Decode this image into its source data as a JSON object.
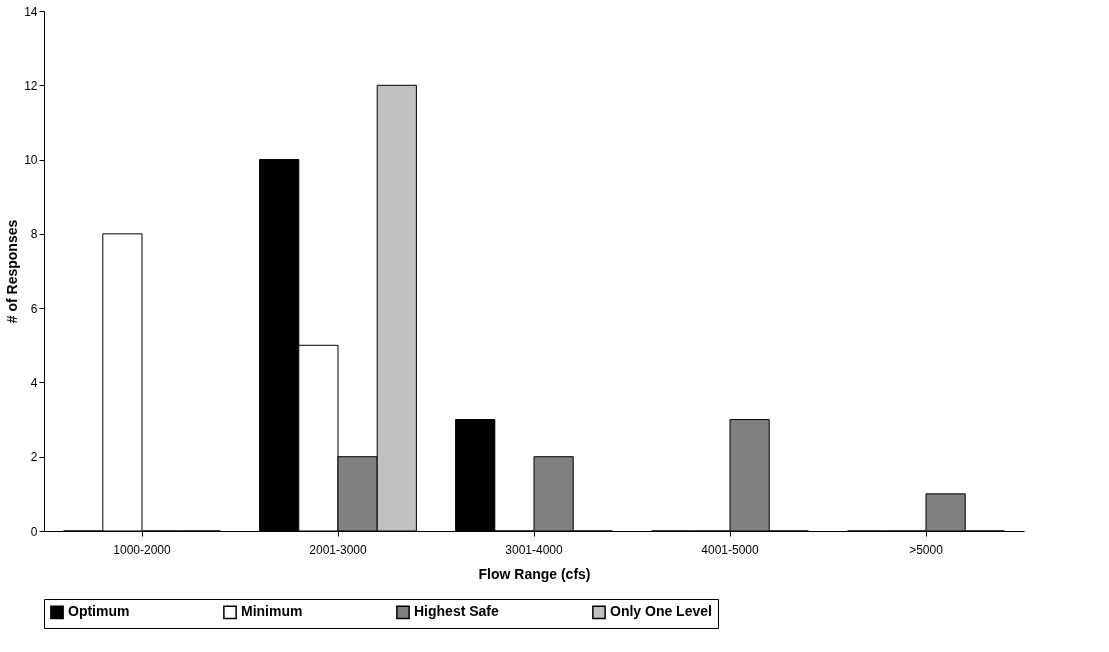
{
  "chart_data": {
    "type": "bar",
    "xlabel": "Flow Range (cfs)",
    "ylabel": "# of Responses",
    "categories": [
      "1000-2000",
      "2001-3000",
      "3001-4000",
      "4001-5000",
      ">5000"
    ],
    "series": [
      {
        "name": "Optimum",
        "color": "#000000",
        "values": [
          0,
          10,
          3,
          0,
          0
        ]
      },
      {
        "name": "Minimum",
        "color": "#ffffff",
        "values": [
          8,
          5,
          0,
          0,
          0
        ]
      },
      {
        "name": "Highest Safe",
        "color": "#808080",
        "values": [
          0,
          2,
          2,
          3,
          1
        ]
      },
      {
        "name": "Only One Level",
        "color": "#c0c0c0",
        "values": [
          0,
          12,
          0,
          0,
          0
        ]
      }
    ],
    "ylim": [
      0,
      14
    ],
    "yticks": [
      0,
      2,
      4,
      6,
      8,
      10,
      12,
      14
    ],
    "grid": false,
    "legend": "bottom"
  }
}
